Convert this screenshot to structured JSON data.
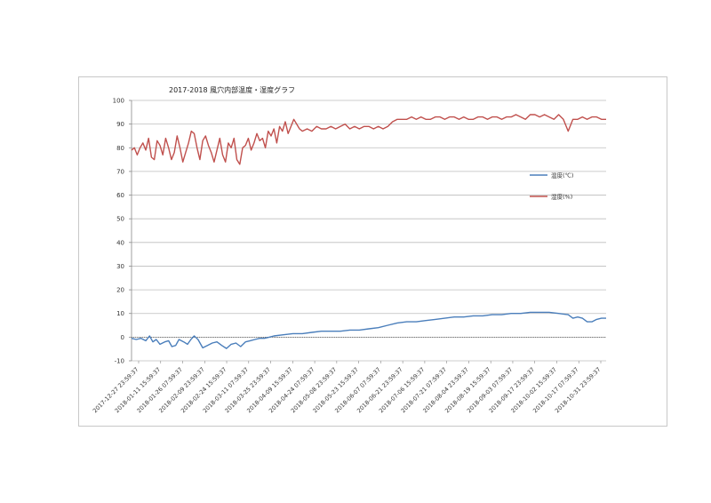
{
  "chart_data": {
    "type": "line",
    "title": "2017-2018 風穴内部温度・湿度グラフ",
    "ylim": [
      -10,
      100
    ],
    "yticks": [
      -10,
      0,
      10,
      20,
      30,
      40,
      50,
      60,
      70,
      80,
      90,
      100
    ],
    "grid": true,
    "legend_position": "right",
    "categories": [
      "2017-12-27 23:59:37",
      "2018-01-11 15:59:37",
      "2018-01-26 07:59:37",
      "2018-02-09 23:59:37",
      "2018-02-24 15:59:37",
      "2018-03-11 07:59:37",
      "2018-03-25 23:59:37",
      "2018-04-09 15:59:37",
      "2018-04-24 07:59:37",
      "2018-05-08 23:59:37",
      "2018-05-23 15:59:37",
      "2018-06-07 07:59:37",
      "2018-06-21 23:59:37",
      "2018-07-06 15:59:37",
      "2018-07-21 07:59:37",
      "2018-08-04 23:59:37",
      "2018-08-19 15:59:37",
      "2018-09-03 07:59:37",
      "2018-09-17 23:59:37",
      "2018-10-02 15:59:37",
      "2018-10-17 07:59:37",
      "2018-10-31 23:59:37"
    ],
    "x_range": [
      0,
      100
    ],
    "series": [
      {
        "name": "温度(℃)",
        "color": "#4a7ebb",
        "x": [
          0,
          1,
          2,
          3,
          3.8,
          4.5,
          5.2,
          6,
          7,
          7.8,
          8.5,
          9.3,
          10,
          11,
          11.8,
          12.5,
          13.2,
          14,
          15,
          16,
          17,
          18,
          19,
          20,
          21,
          22,
          23,
          24,
          25,
          26,
          27,
          28,
          29,
          30,
          32,
          34,
          36,
          38,
          40,
          42,
          44,
          46,
          48,
          50,
          52,
          54,
          56,
          58,
          60,
          62,
          64,
          66,
          68,
          70,
          72,
          74,
          76,
          78,
          80,
          82,
          84,
          86,
          88,
          90,
          92,
          93,
          94,
          95,
          96,
          97,
          98,
          99,
          100
        ],
        "y": [
          -0.5,
          -1,
          -0.5,
          -1.5,
          0.5,
          -2,
          -1,
          -3,
          -2,
          -1.5,
          -4,
          -3.5,
          -1,
          -2,
          -3,
          -1,
          0.5,
          -1,
          -4.5,
          -3.5,
          -2.5,
          -2,
          -3.5,
          -4.8,
          -3,
          -2.5,
          -4,
          -2,
          -1.5,
          -1,
          -0.5,
          -0.5,
          0,
          0.5,
          1,
          1.5,
          1.5,
          2,
          2.5,
          2.5,
          2.5,
          3,
          3,
          3.5,
          4,
          5,
          6,
          6.5,
          6.5,
          7,
          7.5,
          8,
          8.5,
          8.5,
          9,
          9,
          9.5,
          9.5,
          10,
          10,
          10.5,
          10.5,
          10.5,
          10,
          9.5,
          8,
          8.5,
          8,
          6.5,
          6.5,
          7.5,
          8,
          8
        ]
      },
      {
        "name": "湿度(%)",
        "color": "#c0504d",
        "x": [
          0,
          0.6,
          1.2,
          1.8,
          2.4,
          3,
          3.6,
          4.2,
          4.8,
          5.4,
          6,
          6.6,
          7.2,
          7.8,
          8.4,
          9,
          9.6,
          10.2,
          10.8,
          11.4,
          12,
          12.6,
          13.2,
          13.8,
          14.4,
          15,
          15.6,
          16.2,
          16.8,
          17.4,
          18,
          18.6,
          19.2,
          19.8,
          20.4,
          21,
          21.6,
          22.2,
          22.8,
          23.4,
          24,
          24.6,
          25.2,
          25.8,
          26.4,
          27,
          27.6,
          28.2,
          28.8,
          29.4,
          30,
          30.6,
          31.2,
          31.8,
          32.4,
          33,
          33.6,
          34.2,
          34.8,
          35.4,
          36,
          37,
          38,
          39,
          40,
          41,
          42,
          43,
          44,
          45,
          46,
          47,
          48,
          49,
          50,
          51,
          52,
          53,
          54,
          55,
          56,
          57,
          58,
          59,
          60,
          61,
          62,
          63,
          64,
          65,
          66,
          67,
          68,
          69,
          70,
          71,
          72,
          73,
          74,
          75,
          76,
          77,
          78,
          79,
          80,
          81,
          82,
          83,
          84,
          85,
          86,
          87,
          88,
          89,
          90,
          91,
          92,
          93,
          94,
          95,
          96,
          97,
          98,
          99,
          100
        ],
        "y": [
          79,
          80,
          77,
          80,
          82,
          79,
          84,
          76,
          75,
          83,
          81,
          77,
          84,
          80,
          75,
          78,
          85,
          80,
          74,
          78,
          82,
          87,
          86,
          80,
          75,
          83,
          85,
          81,
          78,
          74,
          79,
          84,
          77,
          74,
          82,
          80,
          84,
          75,
          73,
          80,
          81,
          84,
          79,
          82,
          86,
          83,
          84,
          80,
          87,
          85,
          88,
          82,
          89,
          87,
          91,
          86,
          89,
          92,
          90,
          88,
          87,
          88,
          87,
          89,
          88,
          88,
          89,
          88,
          89,
          90,
          88,
          89,
          88,
          89,
          89,
          88,
          89,
          88,
          89,
          91,
          92,
          92,
          92,
          93,
          92,
          93,
          92,
          92,
          93,
          93,
          92,
          93,
          93,
          92,
          93,
          92,
          92,
          93,
          93,
          92,
          93,
          93,
          92,
          93,
          93,
          94,
          93,
          92,
          94,
          94,
          93,
          94,
          93,
          92,
          94,
          92,
          87,
          92,
          92,
          93,
          92,
          93,
          93,
          92,
          92
        ]
      }
    ]
  }
}
